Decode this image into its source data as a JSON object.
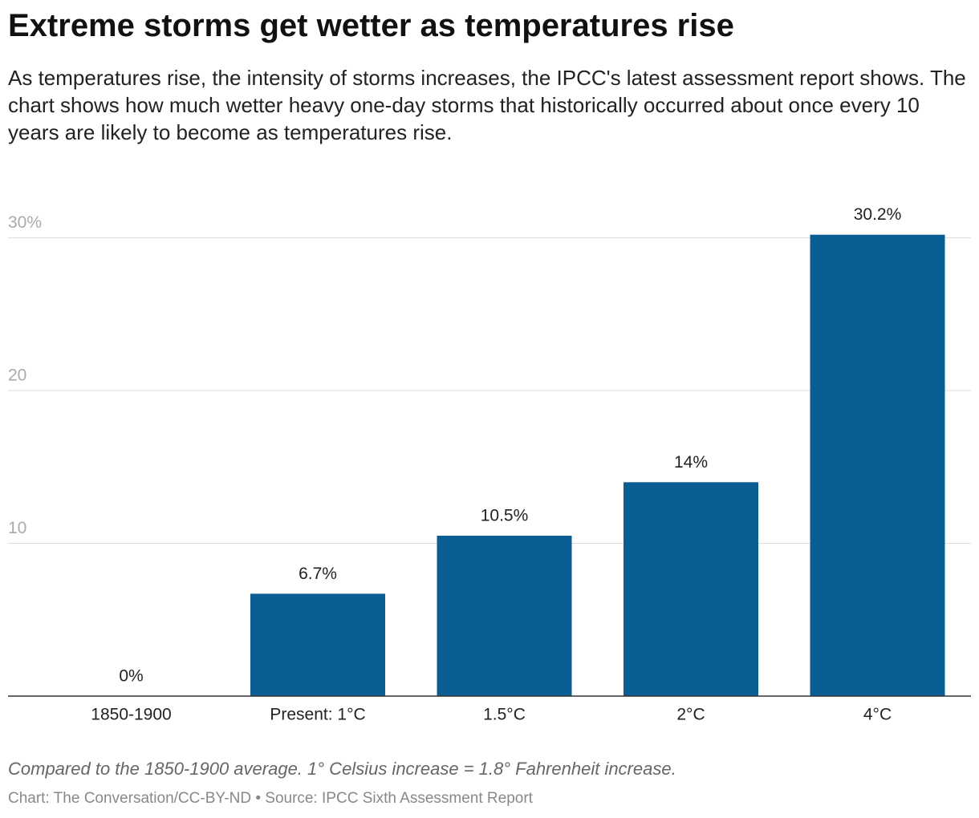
{
  "chart_data": {
    "type": "bar",
    "title": "Extreme storms get wetter as temperatures rise",
    "subtitle": "As temperatures rise, the intensity of storms increases, the IPCC's latest assessment report shows. The chart shows how much wetter heavy one-day storms that historically occurred about once every 10 years are likely to become as temperatures rise.",
    "categories": [
      "1850-1900",
      "Present: 1°C",
      "1.5°C",
      "2°C",
      "4°C"
    ],
    "values": [
      0,
      6.7,
      10.5,
      14,
      30.2
    ],
    "value_labels": [
      "0%",
      "6.7%",
      "10.5%",
      "14%",
      "30.2%"
    ],
    "color": "#0a5e93",
    "ylim": [
      0,
      32
    ],
    "yticks": [
      10,
      20,
      {
        "value": 30,
        "label": "30%"
      }
    ],
    "grid": true,
    "note": "Compared to the 1850-1900 average. 1° Celsius increase = 1.8° Fahrenheit increase.",
    "source": "Chart: The Conversation/CC-BY-ND • Source: IPCC Sixth Assessment Report"
  }
}
